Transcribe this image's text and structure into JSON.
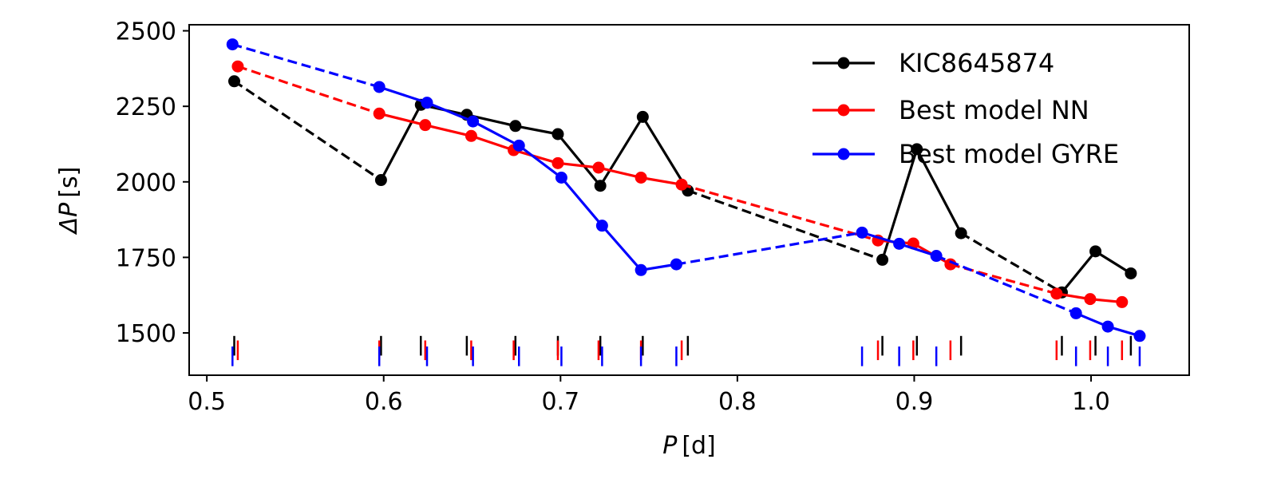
{
  "chart_data": {
    "type": "line",
    "xlabel": {
      "symbol": "P",
      "unit": "[d]"
    },
    "ylabel": {
      "symbol": "ΔP",
      "unit": "[s]"
    },
    "xlim": [
      0.49,
      1.0555
    ],
    "ylim": [
      1360,
      2520
    ],
    "xticks": [
      0.5,
      0.6,
      0.7,
      0.8,
      0.9,
      1.0
    ],
    "xtick_labels": [
      "0.5",
      "0.6",
      "0.7",
      "0.8",
      "0.9",
      "1.0"
    ],
    "yticks": [
      1500,
      1750,
      2000,
      2250,
      2500
    ],
    "ytick_labels": [
      "1500",
      "1750",
      "2000",
      "2250",
      "2500"
    ],
    "legend_position": "top-right",
    "series": [
      {
        "name": "KIC8645874",
        "color": "#000000",
        "x": [
          0.5155,
          0.5985,
          0.621,
          0.647,
          0.6745,
          0.6985,
          0.7225,
          0.7465,
          0.772,
          0.882,
          0.9015,
          0.9265,
          0.9835,
          1.0025,
          1.0225
        ],
        "y": [
          2333,
          2006,
          2255,
          2222,
          2185,
          2158,
          1987,
          2215,
          1971,
          1742,
          2108,
          1830,
          1634,
          1770,
          1697
        ],
        "segment_styles": [
          "dashed",
          "solid",
          "solid",
          "solid",
          "solid",
          "solid",
          "solid",
          "solid",
          "dashed",
          "solid",
          "solid",
          "dashed",
          "solid",
          "solid"
        ],
        "marker_periods": [
          0.5155,
          0.5985,
          0.621,
          0.647,
          0.6745,
          0.6985,
          0.7225,
          0.7465,
          0.772,
          0.882,
          0.9015,
          0.9265,
          0.9835,
          1.0025,
          1.0225
        ]
      },
      {
        "name": "Best model NN",
        "color": "#ff0000",
        "x": [
          0.5175,
          0.5975,
          0.6235,
          0.6495,
          0.6735,
          0.6985,
          0.7215,
          0.7455,
          0.7685,
          0.8795,
          0.8995,
          0.9205,
          0.9805,
          0.9995,
          1.0175
        ],
        "y": [
          2382,
          2226,
          2188,
          2152,
          2105,
          2062,
          2047,
          2014,
          1991,
          1806,
          1796,
          1727,
          1630,
          1612,
          1602
        ],
        "segment_styles": [
          "dashed",
          "solid",
          "solid",
          "solid",
          "solid",
          "solid",
          "solid",
          "solid",
          "dashed",
          "solid",
          "solid",
          "dashed",
          "solid",
          "solid"
        ],
        "marker_periods": [
          0.5175,
          0.5975,
          0.6235,
          0.6495,
          0.6735,
          0.6985,
          0.7215,
          0.7455,
          0.7685,
          0.8795,
          0.8995,
          0.9205,
          0.9805,
          0.9995,
          1.0175
        ]
      },
      {
        "name": "Best model GYRE",
        "color": "#0000ff",
        "x": [
          0.5145,
          0.5975,
          0.6245,
          0.6505,
          0.6765,
          0.7005,
          0.7235,
          0.7455,
          0.7655,
          0.8705,
          0.8915,
          0.9125,
          0.9915,
          1.0095,
          1.0275
        ],
        "y": [
          2455,
          2314,
          2262,
          2200,
          2120,
          2014,
          1855,
          1708,
          1727,
          1832,
          1795,
          1755,
          1565,
          1521,
          1490
        ],
        "segment_styles": [
          "dashed",
          "solid",
          "solid",
          "solid",
          "solid",
          "solid",
          "solid",
          "solid",
          "dashed",
          "solid",
          "solid",
          "dashed",
          "solid",
          "solid"
        ],
        "marker_periods": [
          0.5145,
          0.5975,
          0.6245,
          0.6505,
          0.6765,
          0.7005,
          0.7235,
          0.7455,
          0.7655,
          0.8705,
          0.8915,
          0.9125,
          0.9915,
          1.0095,
          1.0275
        ]
      }
    ],
    "period_markers": [
      {
        "series": "KIC8645874",
        "color": "#000000",
        "y_from": 1425,
        "y_to": 1490
      },
      {
        "series": "Best model NN",
        "color": "#ff0000",
        "y_from": 1410,
        "y_to": 1475
      },
      {
        "series": "Best model GYRE",
        "color": "#0000ff",
        "y_from": 1390,
        "y_to": 1455
      }
    ]
  }
}
